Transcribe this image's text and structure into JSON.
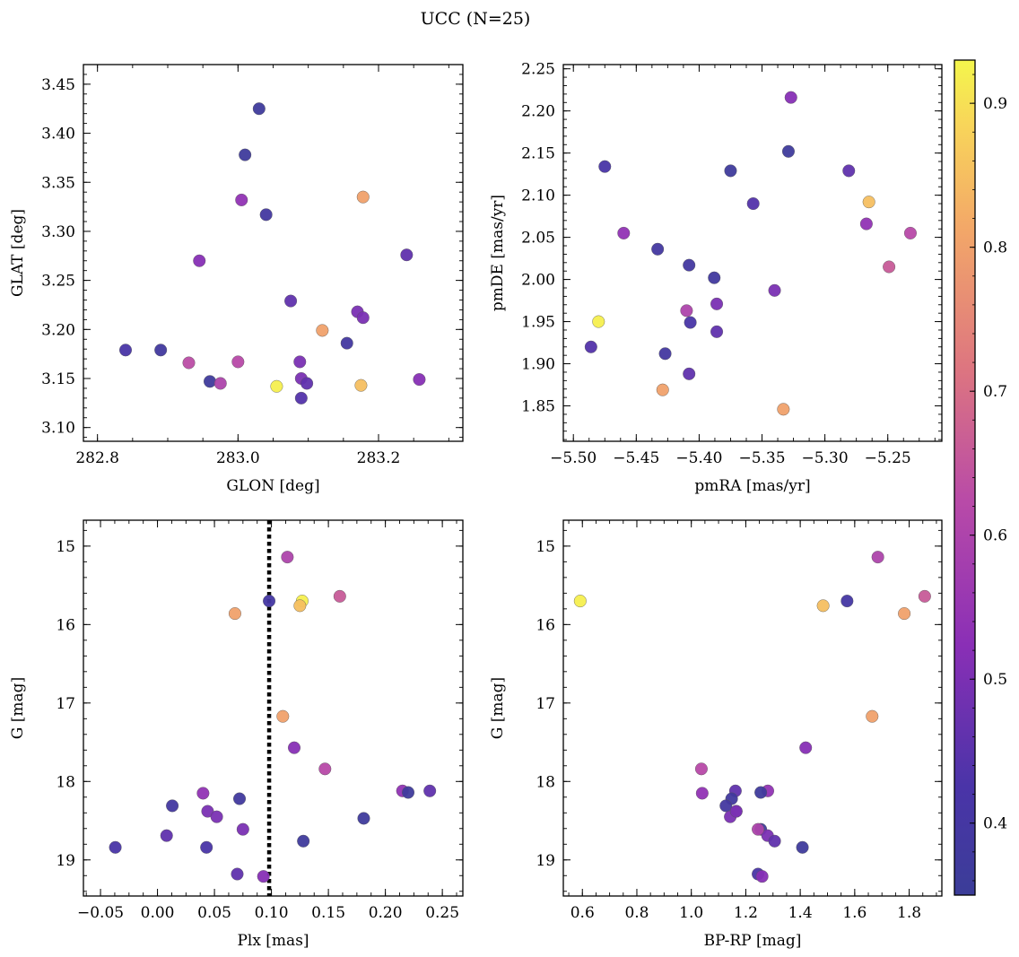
{
  "figure": {
    "title": "UCC (N=25)"
  },
  "colorbar": {
    "cmap": "plasma",
    "range": [
      0.35,
      0.93
    ],
    "ticks": [
      "0.4",
      "0.5",
      "0.6",
      "0.7",
      "0.8",
      "0.9"
    ]
  },
  "chart_data": [
    {
      "type": "scatter",
      "name": "sky",
      "xlabel": "GLON [deg]",
      "ylabel": "GLAT [deg]",
      "xlim": [
        282.78,
        283.32
      ],
      "ylim": [
        3.086,
        3.47
      ],
      "xticks": [
        "282.8",
        "283.0",
        "283.2"
      ],
      "yticks": [
        "3.10",
        "3.15",
        "3.20",
        "3.25",
        "3.30",
        "3.35",
        "3.40",
        "3.45"
      ],
      "x": [
        283.03,
        283.01,
        283.178,
        283.005,
        283.04,
        282.945,
        283.24,
        283.075,
        283.17,
        283.178,
        283.12,
        282.84,
        282.89,
        283.155,
        283.0,
        282.93,
        283.088,
        282.96,
        282.975,
        283.055,
        283.09,
        283.098,
        283.175,
        283.258,
        283.09
      ],
      "y": [
        3.425,
        3.378,
        3.335,
        3.332,
        3.317,
        3.27,
        3.276,
        3.229,
        3.218,
        3.212,
        3.199,
        3.179,
        3.179,
        3.186,
        3.167,
        3.166,
        3.167,
        3.147,
        3.145,
        3.142,
        3.15,
        3.145,
        3.143,
        3.149,
        3.13
      ],
      "c": [
        0.37,
        0.37,
        0.8,
        0.54,
        0.39,
        0.52,
        0.46,
        0.46,
        0.5,
        0.5,
        0.8,
        0.42,
        0.38,
        0.39,
        0.62,
        0.63,
        0.5,
        0.37,
        0.6,
        0.92,
        0.5,
        0.46,
        0.85,
        0.52,
        0.44
      ]
    },
    {
      "type": "scatter",
      "name": "proper-motion",
      "xlabel": "pmRA [mas/yr]",
      "ylabel": "pmDE [mas/yr]",
      "xlim": [
        -5.508,
        -5.207
      ],
      "ylim": [
        1.808,
        2.255
      ],
      "xticks": [
        "−5.50",
        "−5.45",
        "−5.40",
        "−5.35",
        "−5.30",
        "−5.25"
      ],
      "yticks": [
        "1.85",
        "1.90",
        "1.95",
        "2.00",
        "2.05",
        "2.10",
        "2.15",
        "2.20",
        "2.25"
      ],
      "x": [
        -5.327,
        -5.329,
        -5.475,
        -5.375,
        -5.281,
        -5.357,
        -5.265,
        -5.267,
        -5.46,
        -5.232,
        -5.433,
        -5.249,
        -5.408,
        -5.388,
        -5.34,
        -5.41,
        -5.48,
        -5.386,
        -5.407,
        -5.386,
        -5.486,
        -5.427,
        -5.408,
        -5.429,
        -5.333
      ],
      "y": [
        2.216,
        2.152,
        2.134,
        2.129,
        2.129,
        2.09,
        2.092,
        2.066,
        2.055,
        2.055,
        2.036,
        2.015,
        2.017,
        2.002,
        1.987,
        1.963,
        1.95,
        1.971,
        1.949,
        1.938,
        1.92,
        1.912,
        1.888,
        1.869,
        1.846
      ],
      "c": [
        0.52,
        0.37,
        0.42,
        0.37,
        0.46,
        0.44,
        0.85,
        0.54,
        0.54,
        0.62,
        0.39,
        0.66,
        0.39,
        0.38,
        0.5,
        0.6,
        0.92,
        0.5,
        0.42,
        0.46,
        0.44,
        0.39,
        0.46,
        0.8,
        0.8
      ]
    },
    {
      "type": "scatter",
      "name": "plx-G",
      "xlabel": "Plx [mas]",
      "ylabel": "G [mag]",
      "xlim": [
        -0.065,
        0.268
      ],
      "ylim": [
        19.46,
        14.67
      ],
      "y_inverted": true,
      "vline": 0.098,
      "xticks": [
        "−0.05",
        "0.00",
        "0.05",
        "0.10",
        "0.15",
        "0.20",
        "0.25"
      ],
      "yticks": [
        "15",
        "16",
        "17",
        "18",
        "19"
      ],
      "x": [
        0.114,
        0.16,
        0.098,
        0.127,
        0.125,
        0.068,
        0.11,
        0.12,
        0.147,
        0.215,
        0.22,
        0.239,
        0.04,
        0.072,
        0.013,
        0.044,
        0.052,
        0.181,
        0.075,
        0.008,
        0.128,
        -0.037,
        0.043,
        0.07,
        0.093
      ],
      "y": [
        15.14,
        15.64,
        15.7,
        15.7,
        15.76,
        15.86,
        17.17,
        17.57,
        17.84,
        18.12,
        18.14,
        18.12,
        18.15,
        18.22,
        18.31,
        18.38,
        18.45,
        18.47,
        18.61,
        18.69,
        18.76,
        18.84,
        18.84,
        19.18,
        19.21
      ],
      "c": [
        0.6,
        0.66,
        0.4,
        0.92,
        0.85,
        0.8,
        0.8,
        0.52,
        0.62,
        0.54,
        0.37,
        0.46,
        0.54,
        0.38,
        0.39,
        0.5,
        0.5,
        0.37,
        0.5,
        0.46,
        0.37,
        0.42,
        0.42,
        0.46,
        0.52
      ]
    },
    {
      "type": "scatter",
      "name": "cmd",
      "xlabel": "BP-RP [mag]",
      "ylabel": "G [mag]",
      "xlim": [
        0.53,
        1.92
      ],
      "ylim": [
        19.46,
        14.67
      ],
      "y_inverted": true,
      "xticks": [
        "0.6",
        "0.8",
        "1.0",
        "1.2",
        "1.4",
        "1.6",
        "1.8"
      ],
      "yticks": [
        "15",
        "16",
        "17",
        "18",
        "19"
      ],
      "x": [
        1.685,
        1.857,
        1.572,
        0.592,
        1.484,
        1.782,
        1.664,
        1.42,
        1.037,
        1.281,
        1.255,
        1.162,
        1.04,
        1.148,
        1.127,
        1.165,
        1.143,
        1.255,
        1.28,
        1.306,
        1.408,
        1.245,
        1.26,
        1.245,
        1.165
      ],
      "y": [
        15.14,
        15.64,
        15.7,
        15.7,
        15.76,
        15.86,
        17.17,
        17.57,
        17.84,
        18.12,
        18.14,
        18.12,
        18.15,
        18.22,
        18.31,
        18.38,
        18.45,
        18.61,
        18.69,
        18.76,
        18.84,
        19.18,
        19.21,
        18.61,
        18.38
      ],
      "c": [
        0.6,
        0.66,
        0.4,
        0.92,
        0.85,
        0.8,
        0.8,
        0.52,
        0.62,
        0.54,
        0.37,
        0.46,
        0.54,
        0.38,
        0.39,
        0.5,
        0.5,
        0.37,
        0.5,
        0.46,
        0.37,
        0.42,
        0.52,
        0.6,
        0.5
      ]
    }
  ]
}
